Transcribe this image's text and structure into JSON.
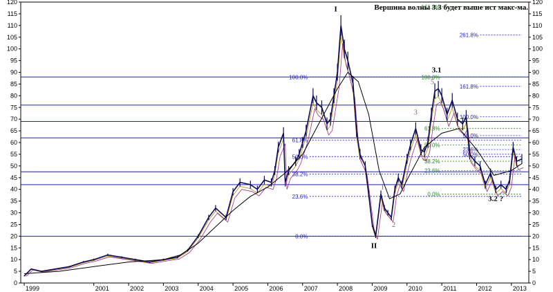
{
  "chart_data": {
    "type": "line",
    "title": "Вершина волны 3.3 будет выше ист макс-ма.",
    "xlabel": "",
    "ylabel": "",
    "xlim": [
      1998.9,
      2013.5
    ],
    "ylim": [
      0,
      120
    ],
    "y_ticks": [
      0,
      5,
      10,
      15,
      20,
      25,
      30,
      35,
      40,
      45,
      50,
      55,
      60,
      65,
      70,
      75,
      80,
      85,
      90,
      95,
      100,
      105,
      110,
      115,
      120
    ],
    "x_ticks": [
      {
        "label": "1999",
        "x": 1999.0
      },
      {
        "label": "2001",
        "x": 2001.0
      },
      {
        "label": "2002",
        "x": 2002.0
      },
      {
        "label": "2003",
        "x": 2003.0
      },
      {
        "label": "2004",
        "x": 2004.0
      },
      {
        "label": "2005",
        "x": 2005.0
      },
      {
        "label": "2006",
        "x": 2006.0
      },
      {
        "label": "2007",
        "x": 2007.0
      },
      {
        "label": "2008",
        "x": 2008.0
      },
      {
        "label": "2009",
        "x": 2009.0
      },
      {
        "label": "2010",
        "x": 2010.0
      },
      {
        "label": "2011",
        "x": 2011.0
      },
      {
        "label": "2012",
        "x": 2012.0
      },
      {
        "label": "2013",
        "x": 2013.0
      }
    ],
    "grid": false,
    "colors": {
      "price": "#0a0a5a",
      "ma_short": "#b08a00",
      "ma_mid": "#a02a80",
      "ma_long": "#000000",
      "support": "#1a1ad0",
      "fib_blue": "#1a1ad0",
      "fib_green": "#1a8a1a"
    },
    "series": [
      {
        "role": "price",
        "x": [
          1999.0,
          1999.2,
          1999.5,
          1999.9,
          2000.3,
          2000.7,
          2001.0,
          2001.4,
          2001.8,
          2002.2,
          2002.6,
          2003.0,
          2003.4,
          2003.7,
          2004.0,
          2004.3,
          2004.5,
          2004.8,
          2005.0,
          2005.2,
          2005.5,
          2005.7,
          2005.9,
          2006.1,
          2006.2,
          2006.3,
          2006.45,
          2006.5,
          2006.6,
          2006.8,
          2006.9,
          2007.0,
          2007.1,
          2007.3,
          2007.4,
          2007.55,
          2007.7,
          2007.8,
          2007.9,
          2008.0,
          2008.1,
          2008.2,
          2008.3,
          2008.45,
          2008.55,
          2008.65,
          2008.8,
          2008.9,
          2009.0,
          2009.1,
          2009.25,
          2009.35,
          2009.45,
          2009.55,
          2009.65,
          2009.75,
          2009.85,
          2010.0,
          2010.1,
          2010.25,
          2010.4,
          2010.5,
          2010.6,
          2010.7,
          2010.8,
          2010.9,
          2011.0,
          2011.15,
          2011.3,
          2011.45,
          2011.6,
          2011.7,
          2011.8,
          2011.95,
          2012.1,
          2012.25,
          2012.4,
          2012.55,
          2012.7,
          2012.85,
          2012.95,
          2013.05,
          2013.15,
          2013.3
        ],
        "y": [
          3,
          6,
          5,
          6,
          7,
          9,
          10,
          12,
          11,
          10,
          9,
          10,
          11,
          14,
          20,
          28,
          32,
          28,
          39,
          43,
          42,
          40,
          44,
          43,
          48,
          58,
          64,
          43,
          48,
          52,
          55,
          60,
          65,
          80,
          77,
          75,
          68,
          70,
          80,
          90,
          110,
          100,
          95,
          85,
          65,
          55,
          50,
          38,
          25,
          20,
          38,
          32,
          30,
          28,
          40,
          45,
          42,
          53,
          59,
          66,
          57,
          56,
          60,
          72,
          82,
          83,
          80,
          72,
          78,
          70,
          68,
          71,
          55,
          52,
          50,
          42,
          47,
          40,
          42,
          40,
          44,
          58,
          52,
          53
        ]
      },
      {
        "role": "moving-average-long",
        "x": [
          1999.0,
          2000.0,
          2001.0,
          2002.0,
          2003.0,
          2003.5,
          2004.0,
          2004.5,
          2005.0,
          2005.5,
          2006.0,
          2006.5,
          2007.0,
          2007.5,
          2008.0,
          2008.3,
          2008.6,
          2008.9,
          2009.2,
          2009.5,
          2009.8,
          2010.0,
          2010.5,
          2011.0,
          2011.5,
          2012.0,
          2012.5,
          2013.0,
          2013.3
        ],
        "y": [
          4,
          5,
          7,
          9,
          10,
          12,
          17,
          24,
          31,
          37,
          41,
          47,
          55,
          69,
          83,
          90,
          86,
          72,
          48,
          36,
          38,
          44,
          58,
          64,
          66,
          57,
          46,
          48,
          51
        ]
      }
    ],
    "horizontal_levels": [
      88,
      76,
      69,
      62,
      47.5,
      42,
      20
    ],
    "fib_projection_left": [
      {
        "label": "100.0%",
        "y": 88
      },
      {
        "label": "61.8%",
        "y": 61
      },
      {
        "label": "50.0%",
        "y": 54
      },
      {
        "label": "38.2%",
        "y": 46.5
      },
      {
        "label": "23.6%",
        "y": 37
      },
      {
        "label": "0.0%",
        "y": 20
      }
    ],
    "fib_projection_right_green": [
      {
        "label": "161.8%",
        "y": 118
      },
      {
        "label": "100.0%",
        "y": 88
      },
      {
        "label": "61.8%",
        "y": 66
      },
      {
        "label": "50.0%",
        "y": 59
      },
      {
        "label": "38.2%",
        "y": 52
      },
      {
        "label": "23.6%",
        "y": 48
      },
      {
        "label": "0.0%",
        "y": 38
      }
    ],
    "fib_projection_right_blue": [
      {
        "label": "261.8%",
        "y": 106
      },
      {
        "label": "161.8%",
        "y": 84
      },
      {
        "label": "100.0%",
        "y": 71
      },
      {
        "label": "50.0%",
        "y": 63
      },
      {
        "label": "23.6%",
        "y": 57
      },
      {
        "label": "50.0%",
        "y": 55
      }
    ],
    "annotations": [
      {
        "text": "I",
        "x": 2007.95,
        "y": 116,
        "style": "wave"
      },
      {
        "text": "II",
        "x": 2009.05,
        "y": 15,
        "style": "wave"
      },
      {
        "text": "3.1",
        "x": 2010.85,
        "y": 90,
        "style": "wave"
      },
      {
        "text": "3.2 ?",
        "x": 2012.55,
        "y": 35,
        "style": "wave"
      },
      {
        "text": "1",
        "x": 2009.3,
        "y": 40,
        "style": "sub"
      },
      {
        "text": "2",
        "x": 2009.62,
        "y": 24,
        "style": "sub"
      },
      {
        "text": "3",
        "x": 2010.25,
        "y": 72,
        "style": "sub"
      },
      {
        "text": "4",
        "x": 2010.5,
        "y": 52,
        "style": "sub"
      },
      {
        "text": "5",
        "x": 2010.73,
        "y": 85,
        "style": "sub"
      }
    ]
  }
}
